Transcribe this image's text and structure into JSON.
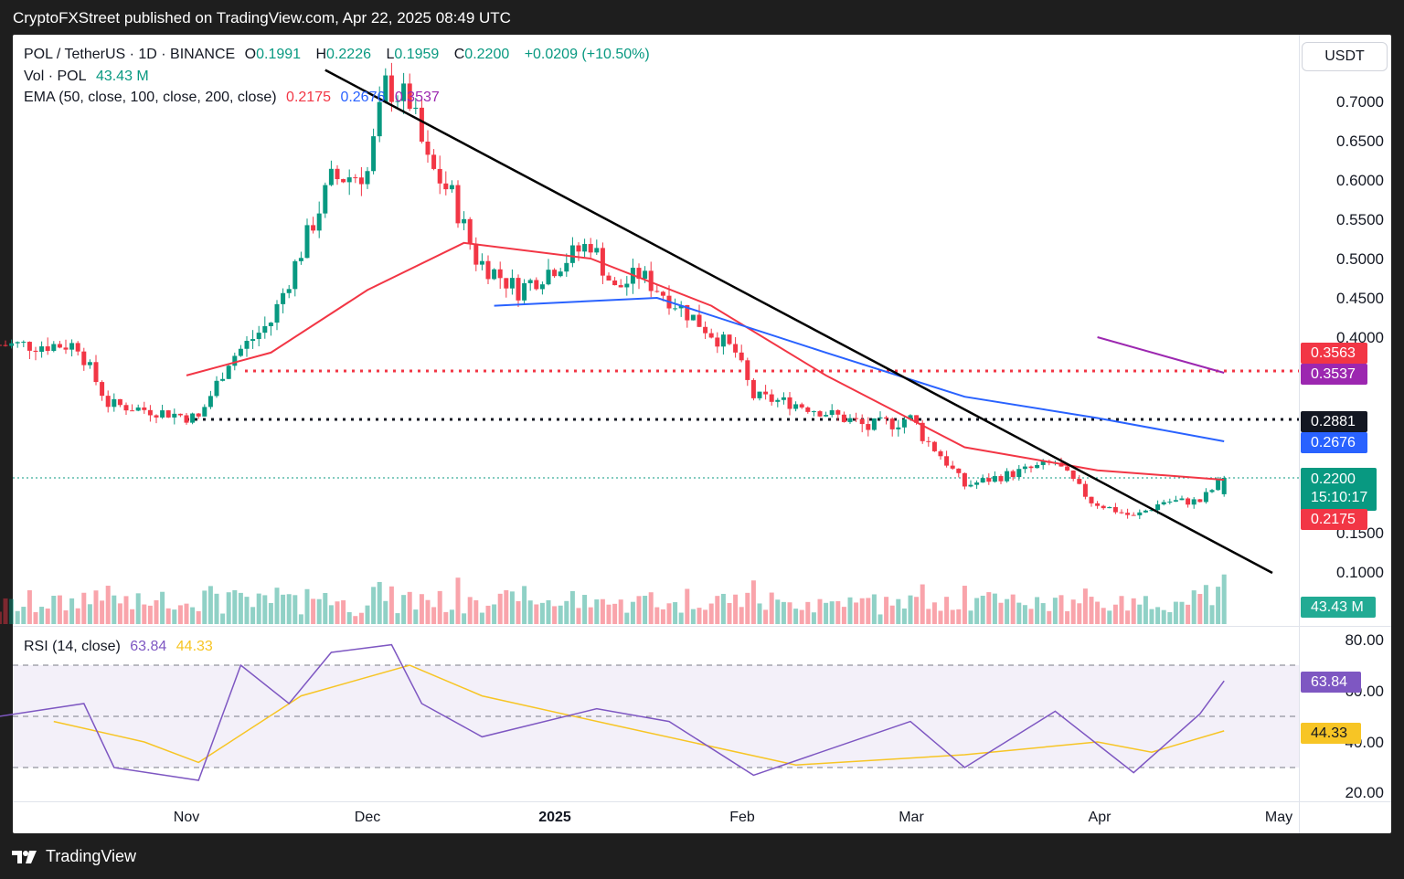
{
  "header": {
    "title": "CryptoFXStreet published on TradingView.com, Apr 22, 2025 08:49 UTC"
  },
  "footer": {
    "brand": "TradingView"
  },
  "legend": {
    "symbol": "POL / TetherUS · 1D · BINANCE",
    "o_label": "O",
    "o_value": "0.1991",
    "h_label": "H",
    "h_value": "0.2226",
    "l_label": "L",
    "l_value": "0.1959",
    "c_label": "C",
    "c_value": "0.2200",
    "change": "+0.0209 (+10.50%)",
    "vol_label": "Vol · POL",
    "vol_value": "43.43 M",
    "ema_label": "EMA (50, close, 100, close, 200, close)",
    "ema50": "0.2175",
    "ema100": "0.2676",
    "ema200": "0.3537",
    "rsi_label": "RSI (14, close)",
    "rsi_value": "63.84",
    "rsi_ma": "44.33"
  },
  "currency_button": "USDT",
  "tags": {
    "red_line": "0.3563",
    "ema200": "0.3537",
    "black_line": "0.2881",
    "ema100": "0.2676",
    "price": "0.2200",
    "countdown": "15:10:17",
    "ema50": "0.2175",
    "volume": "43.43 M",
    "rsi": "63.84",
    "rsi_ma": "44.33"
  },
  "colors": {
    "up": "#089981",
    "down": "#f23645",
    "ema50": "#f23645",
    "ema100": "#2962ff",
    "ema200": "#9c27b0",
    "rsi": "#7e57c2",
    "rsi_ma": "#f7c525"
  },
  "chart_data": [
    {
      "type": "candlestick",
      "title": "POL / TetherUS · 1D · BINANCE",
      "ylabel": "USDT",
      "y_ticks": [
        "0.7000",
        "0.6500",
        "0.6000",
        "0.5500",
        "0.5000",
        "0.4500",
        "0.4000",
        "0.1500",
        "0.1000"
      ],
      "x_ticks": [
        "Nov",
        "Dec",
        "2025",
        "Feb",
        "Mar",
        "Apr",
        "May"
      ],
      "ohlc_last": {
        "open": 0.1991,
        "high": 0.2226,
        "low": 0.1959,
        "close": 0.22
      },
      "close_path": [
        {
          "date": "2024-10-01",
          "close": 0.39
        },
        {
          "date": "2024-10-14",
          "close": 0.39
        },
        {
          "date": "2024-10-19",
          "close": 0.31
        },
        {
          "date": "2024-11-03",
          "close": 0.29
        },
        {
          "date": "2024-11-08",
          "close": 0.37
        },
        {
          "date": "2024-11-15",
          "close": 0.42
        },
        {
          "date": "2024-11-25",
          "close": 0.6
        },
        {
          "date": "2024-12-01",
          "close": 0.61
        },
        {
          "date": "2024-12-04",
          "close": 0.72
        },
        {
          "date": "2024-12-08",
          "close": 0.7
        },
        {
          "date": "2024-12-11",
          "close": 0.62
        },
        {
          "date": "2024-12-15",
          "close": 0.58
        },
        {
          "date": "2024-12-19",
          "close": 0.5
        },
        {
          "date": "2024-12-26",
          "close": 0.46
        },
        {
          "date": "2025-01-07",
          "close": 0.52
        },
        {
          "date": "2025-01-11",
          "close": 0.46
        },
        {
          "date": "2025-01-15",
          "close": 0.48
        },
        {
          "date": "2025-01-20",
          "close": 0.45
        },
        {
          "date": "2025-01-31",
          "close": 0.38
        },
        {
          "date": "2025-02-03",
          "close": 0.32
        },
        {
          "date": "2025-02-10",
          "close": 0.31
        },
        {
          "date": "2025-02-22",
          "close": 0.28
        },
        {
          "date": "2025-03-01",
          "close": 0.29
        },
        {
          "date": "2025-03-06",
          "close": 0.25
        },
        {
          "date": "2025-03-10",
          "close": 0.21
        },
        {
          "date": "2025-03-25",
          "close": 0.24
        },
        {
          "date": "2025-03-31",
          "close": 0.19
        },
        {
          "date": "2025-04-07",
          "close": 0.17
        },
        {
          "date": "2025-04-12",
          "close": 0.19
        },
        {
          "date": "2025-04-18",
          "close": 0.19
        },
        {
          "date": "2025-04-22",
          "close": 0.22
        }
      ],
      "ema50": [
        {
          "date": "2024-11-01",
          "value": 0.35
        },
        {
          "date": "2024-11-15",
          "value": 0.38
        },
        {
          "date": "2024-12-01",
          "value": 0.46
        },
        {
          "date": "2024-12-17",
          "value": 0.52
        },
        {
          "date": "2025-01-07",
          "value": 0.5
        },
        {
          "date": "2025-01-27",
          "value": 0.44
        },
        {
          "date": "2025-02-15",
          "value": 0.35
        },
        {
          "date": "2025-03-10",
          "value": 0.26
        },
        {
          "date": "2025-04-01",
          "value": 0.23
        },
        {
          "date": "2025-04-22",
          "value": 0.2175
        }
      ],
      "ema100": [
        {
          "date": "2024-12-22",
          "value": 0.44
        },
        {
          "date": "2025-01-18",
          "value": 0.45
        },
        {
          "date": "2025-02-15",
          "value": 0.38
        },
        {
          "date": "2025-03-10",
          "value": 0.32
        },
        {
          "date": "2025-04-01",
          "value": 0.29
        },
        {
          "date": "2025-04-22",
          "value": 0.2676
        }
      ],
      "ema200": [
        {
          "date": "2025-04-01",
          "value": 0.4
        },
        {
          "date": "2025-04-22",
          "value": 0.3537
        }
      ],
      "horizontal_lines": [
        {
          "name": "resistance",
          "value": 0.3563,
          "color": "#f23645",
          "style": "dotted"
        },
        {
          "name": "support",
          "value": 0.2881,
          "color": "#131722",
          "style": "dotted"
        }
      ],
      "trendline": [
        {
          "date": "2024-11-24",
          "value": 0.74
        },
        {
          "date": "2025-04-30",
          "value": 0.1
        }
      ]
    },
    {
      "type": "bar",
      "title": "Vol · POL",
      "last_value": "43.43 M"
    },
    {
      "type": "line",
      "title": "RSI (14, close)",
      "y_ticks": [
        "80.00",
        "60.00",
        "40.00",
        "20.00"
      ],
      "bands": [
        70,
        50,
        30
      ],
      "rsi": [
        {
          "date": "2024-10-01",
          "value": 50
        },
        {
          "date": "2024-10-15",
          "value": 55
        },
        {
          "date": "2024-10-20",
          "value": 30
        },
        {
          "date": "2024-11-03",
          "value": 25
        },
        {
          "date": "2024-11-10",
          "value": 70
        },
        {
          "date": "2024-11-18",
          "value": 55
        },
        {
          "date": "2024-11-25",
          "value": 75
        },
        {
          "date": "2024-12-05",
          "value": 78
        },
        {
          "date": "2024-12-10",
          "value": 55
        },
        {
          "date": "2024-12-20",
          "value": 42
        },
        {
          "date": "2025-01-08",
          "value": 53
        },
        {
          "date": "2025-01-20",
          "value": 48
        },
        {
          "date": "2025-02-03",
          "value": 27
        },
        {
          "date": "2025-03-01",
          "value": 48
        },
        {
          "date": "2025-03-10",
          "value": 30
        },
        {
          "date": "2025-03-25",
          "value": 52
        },
        {
          "date": "2025-04-07",
          "value": 28
        },
        {
          "date": "2025-04-18",
          "value": 51
        },
        {
          "date": "2025-04-22",
          "value": 63.84
        }
      ],
      "rsi_ma": [
        {
          "date": "2024-10-10",
          "value": 48
        },
        {
          "date": "2024-10-25",
          "value": 40
        },
        {
          "date": "2024-11-03",
          "value": 32
        },
        {
          "date": "2024-11-20",
          "value": 58
        },
        {
          "date": "2024-12-08",
          "value": 70
        },
        {
          "date": "2024-12-20",
          "value": 58
        },
        {
          "date": "2025-01-10",
          "value": 47
        },
        {
          "date": "2025-02-10",
          "value": 31
        },
        {
          "date": "2025-03-10",
          "value": 35
        },
        {
          "date": "2025-04-01",
          "value": 40
        },
        {
          "date": "2025-04-10",
          "value": 36
        },
        {
          "date": "2025-04-22",
          "value": 44.33
        }
      ]
    }
  ]
}
